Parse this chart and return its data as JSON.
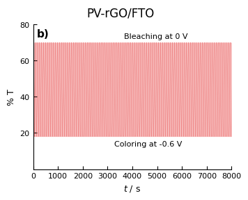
{
  "title": "PV-rGO/FTO",
  "xlabel": "t / s",
  "ylabel": "% T",
  "panel_label": "b)",
  "annotation_top": "Bleaching at 0 V",
  "annotation_bottom": "Coloring at -0.6 V",
  "xmin": 0,
  "xmax": 8000,
  "ymin": 0,
  "ymax": 80,
  "yticks": [
    20,
    40,
    60,
    80
  ],
  "xticks": [
    0,
    1000,
    2000,
    3000,
    4000,
    5000,
    6000,
    7000,
    8000
  ],
  "high_val": 70,
  "low_val": 18,
  "period": 80,
  "line_color": "#E85555",
  "fill_color": "#F08080",
  "background_color": "#ffffff",
  "title_fontsize": 12,
  "label_fontsize": 9,
  "tick_fontsize": 8,
  "annotation_fontsize": 8,
  "panel_fontsize": 11
}
